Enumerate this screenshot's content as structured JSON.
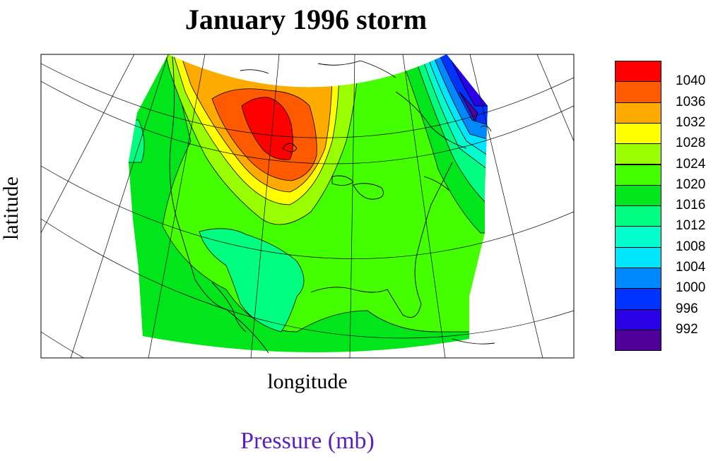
{
  "title": "January 1996 storm",
  "xlabel": "longitude",
  "ylabel": "latitude",
  "footer": "Pressure (mb)",
  "legend": {
    "labels": [
      "1040",
      "1036",
      "1032",
      "1028",
      "1024",
      "1020",
      "1016",
      "1012",
      "1008",
      "1004",
      "1000",
      "996",
      "992"
    ],
    "colors": [
      "#ff0000",
      "#ff5a00",
      "#ffaa00",
      "#ffff00",
      "#99ff00",
      "#44ff00",
      "#00e61a",
      "#00ff80",
      "#00ffcc",
      "#00e6ff",
      "#0088ff",
      "#0033ff",
      "#2a00e6",
      "#50009a"
    ]
  },
  "colors": {
    "land_base": "#44ff00",
    "coast": "#000000",
    "grid": "#000000"
  }
}
